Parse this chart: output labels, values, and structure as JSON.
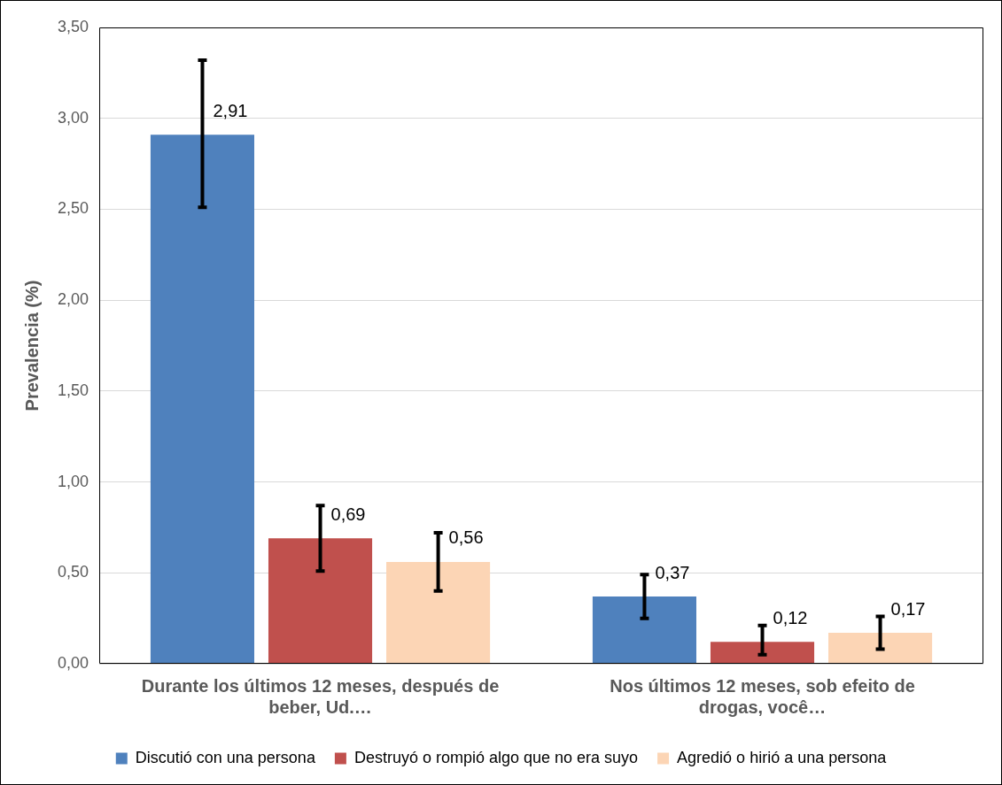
{
  "chart_data": {
    "type": "bar",
    "ylabel": "Prevalencia (%)",
    "categories": [
      "Durante los últimos 12 meses, después de beber, Ud.…",
      "Nos últimos 12 meses, sob efeito de drogas, você…"
    ],
    "series": [
      {
        "name": "Discutió con una persona",
        "color": "#4f81bd",
        "values": [
          2.91,
          0.37
        ],
        "errors": [
          [
            2.51,
            3.32
          ],
          [
            0.25,
            0.49
          ]
        ],
        "value_labels": [
          "2,91",
          "0,37"
        ]
      },
      {
        "name": "Destruyó o rompió algo que no era suyo",
        "color": "#c0504d",
        "values": [
          0.69,
          0.12
        ],
        "errors": [
          [
            0.51,
            0.87
          ],
          [
            0.05,
            0.21
          ]
        ],
        "value_labels": [
          "0,69",
          "0,12"
        ]
      },
      {
        "name": "Agredió o hirió a una persona",
        "color": "#fcd5b5",
        "values": [
          0.56,
          0.17
        ],
        "errors": [
          [
            0.4,
            0.72
          ],
          [
            0.08,
            0.26
          ]
        ],
        "value_labels": [
          "0,56",
          "0,17"
        ]
      }
    ],
    "ylim": [
      0,
      3.5
    ],
    "yticks": [
      {
        "value": 0,
        "label": "0,00"
      },
      {
        "value": 0.5,
        "label": "0,50"
      },
      {
        "value": 1,
        "label": "1,00"
      },
      {
        "value": 1.5,
        "label": "1,50"
      },
      {
        "value": 2,
        "label": "2,00"
      },
      {
        "value": 2.5,
        "label": "2,50"
      },
      {
        "value": 3,
        "label": "3,00"
      },
      {
        "value": 3.5,
        "label": "3,50"
      }
    ],
    "grid": "y",
    "legend": "bottom"
  }
}
